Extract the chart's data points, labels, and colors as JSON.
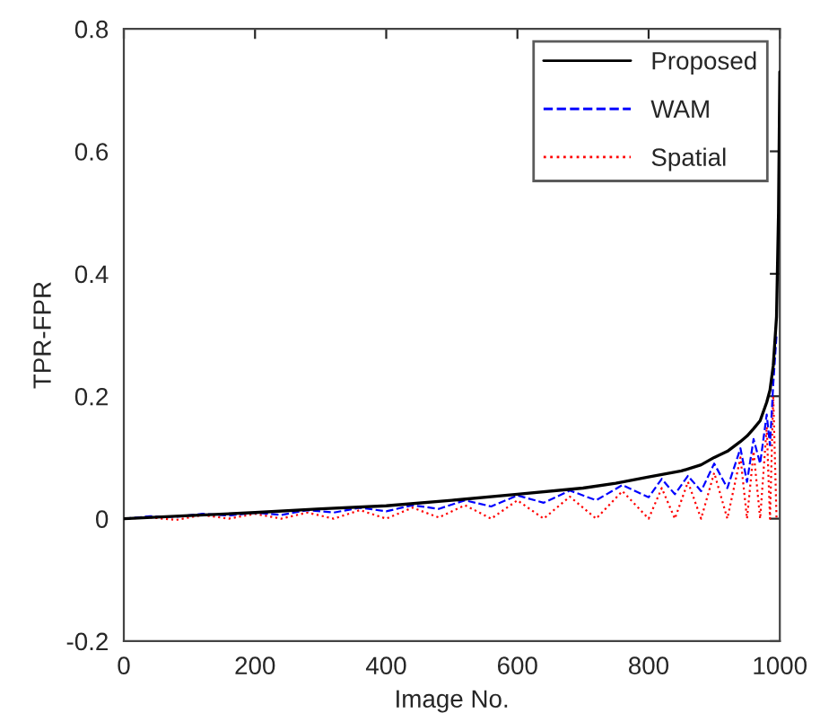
{
  "chart_data": {
    "type": "line",
    "xlabel": "Image No.",
    "ylabel": "TPR-FPR",
    "xlim": [
      0,
      1000
    ],
    "xticks": [
      0,
      200,
      400,
      600,
      800,
      1000
    ],
    "ylim": [
      -0.2,
      0.8
    ],
    "yticks": [
      -0.2,
      0,
      0.2,
      0.4,
      0.6,
      0.8
    ],
    "grid": false,
    "legend": "top right",
    "series": [
      {
        "name": "Proposed",
        "color": "#000000",
        "line_style": "solid",
        "x": [
          0,
          100,
          200,
          300,
          400,
          500,
          600,
          700,
          750,
          800,
          850,
          880,
          900,
          920,
          940,
          950,
          960,
          970,
          980,
          985,
          990,
          995,
          998,
          1000
        ],
        "values": [
          0,
          0.005,
          0.01,
          0.016,
          0.021,
          0.03,
          0.04,
          0.05,
          0.058,
          0.068,
          0.078,
          0.088,
          0.1,
          0.11,
          0.126,
          0.135,
          0.147,
          0.16,
          0.19,
          0.21,
          0.25,
          0.33,
          0.5,
          0.73
        ]
      },
      {
        "name": "WAM",
        "color": "#0000ff",
        "line_style": "dashed",
        "x": [
          0,
          40,
          80,
          120,
          160,
          200,
          240,
          280,
          320,
          360,
          400,
          440,
          480,
          520,
          560,
          600,
          640,
          680,
          720,
          760,
          800,
          820,
          840,
          860,
          880,
          900,
          920,
          940,
          950,
          960,
          970,
          980,
          985,
          990,
          995
        ],
        "values": [
          0,
          0.004,
          0.003,
          0.008,
          0.005,
          0.01,
          0.006,
          0.014,
          0.01,
          0.018,
          0.012,
          0.022,
          0.016,
          0.03,
          0.02,
          0.038,
          0.026,
          0.046,
          0.03,
          0.055,
          0.035,
          0.065,
          0.04,
          0.07,
          0.045,
          0.09,
          0.05,
          0.115,
          0.06,
          0.13,
          0.09,
          0.17,
          0.12,
          0.22,
          0.3
        ]
      },
      {
        "name": "Spatial",
        "color": "#ff0000",
        "line_style": "dotted",
        "x": [
          0,
          40,
          80,
          120,
          160,
          200,
          240,
          280,
          320,
          360,
          400,
          440,
          480,
          520,
          560,
          600,
          640,
          680,
          720,
          760,
          800,
          820,
          840,
          860,
          880,
          900,
          920,
          940,
          950,
          960,
          970,
          980,
          985,
          990,
          995
        ],
        "values": [
          0,
          0.002,
          -0.002,
          0.006,
          0,
          0.008,
          0,
          0.01,
          0,
          0.014,
          0,
          0.018,
          0.002,
          0.022,
          0,
          0.03,
          0,
          0.036,
          0,
          0.045,
          0,
          0.05,
          0,
          0.06,
          0,
          0.075,
          0,
          0.1,
          0,
          0.11,
          0,
          0.15,
          0,
          0.2,
          0
        ]
      }
    ]
  }
}
